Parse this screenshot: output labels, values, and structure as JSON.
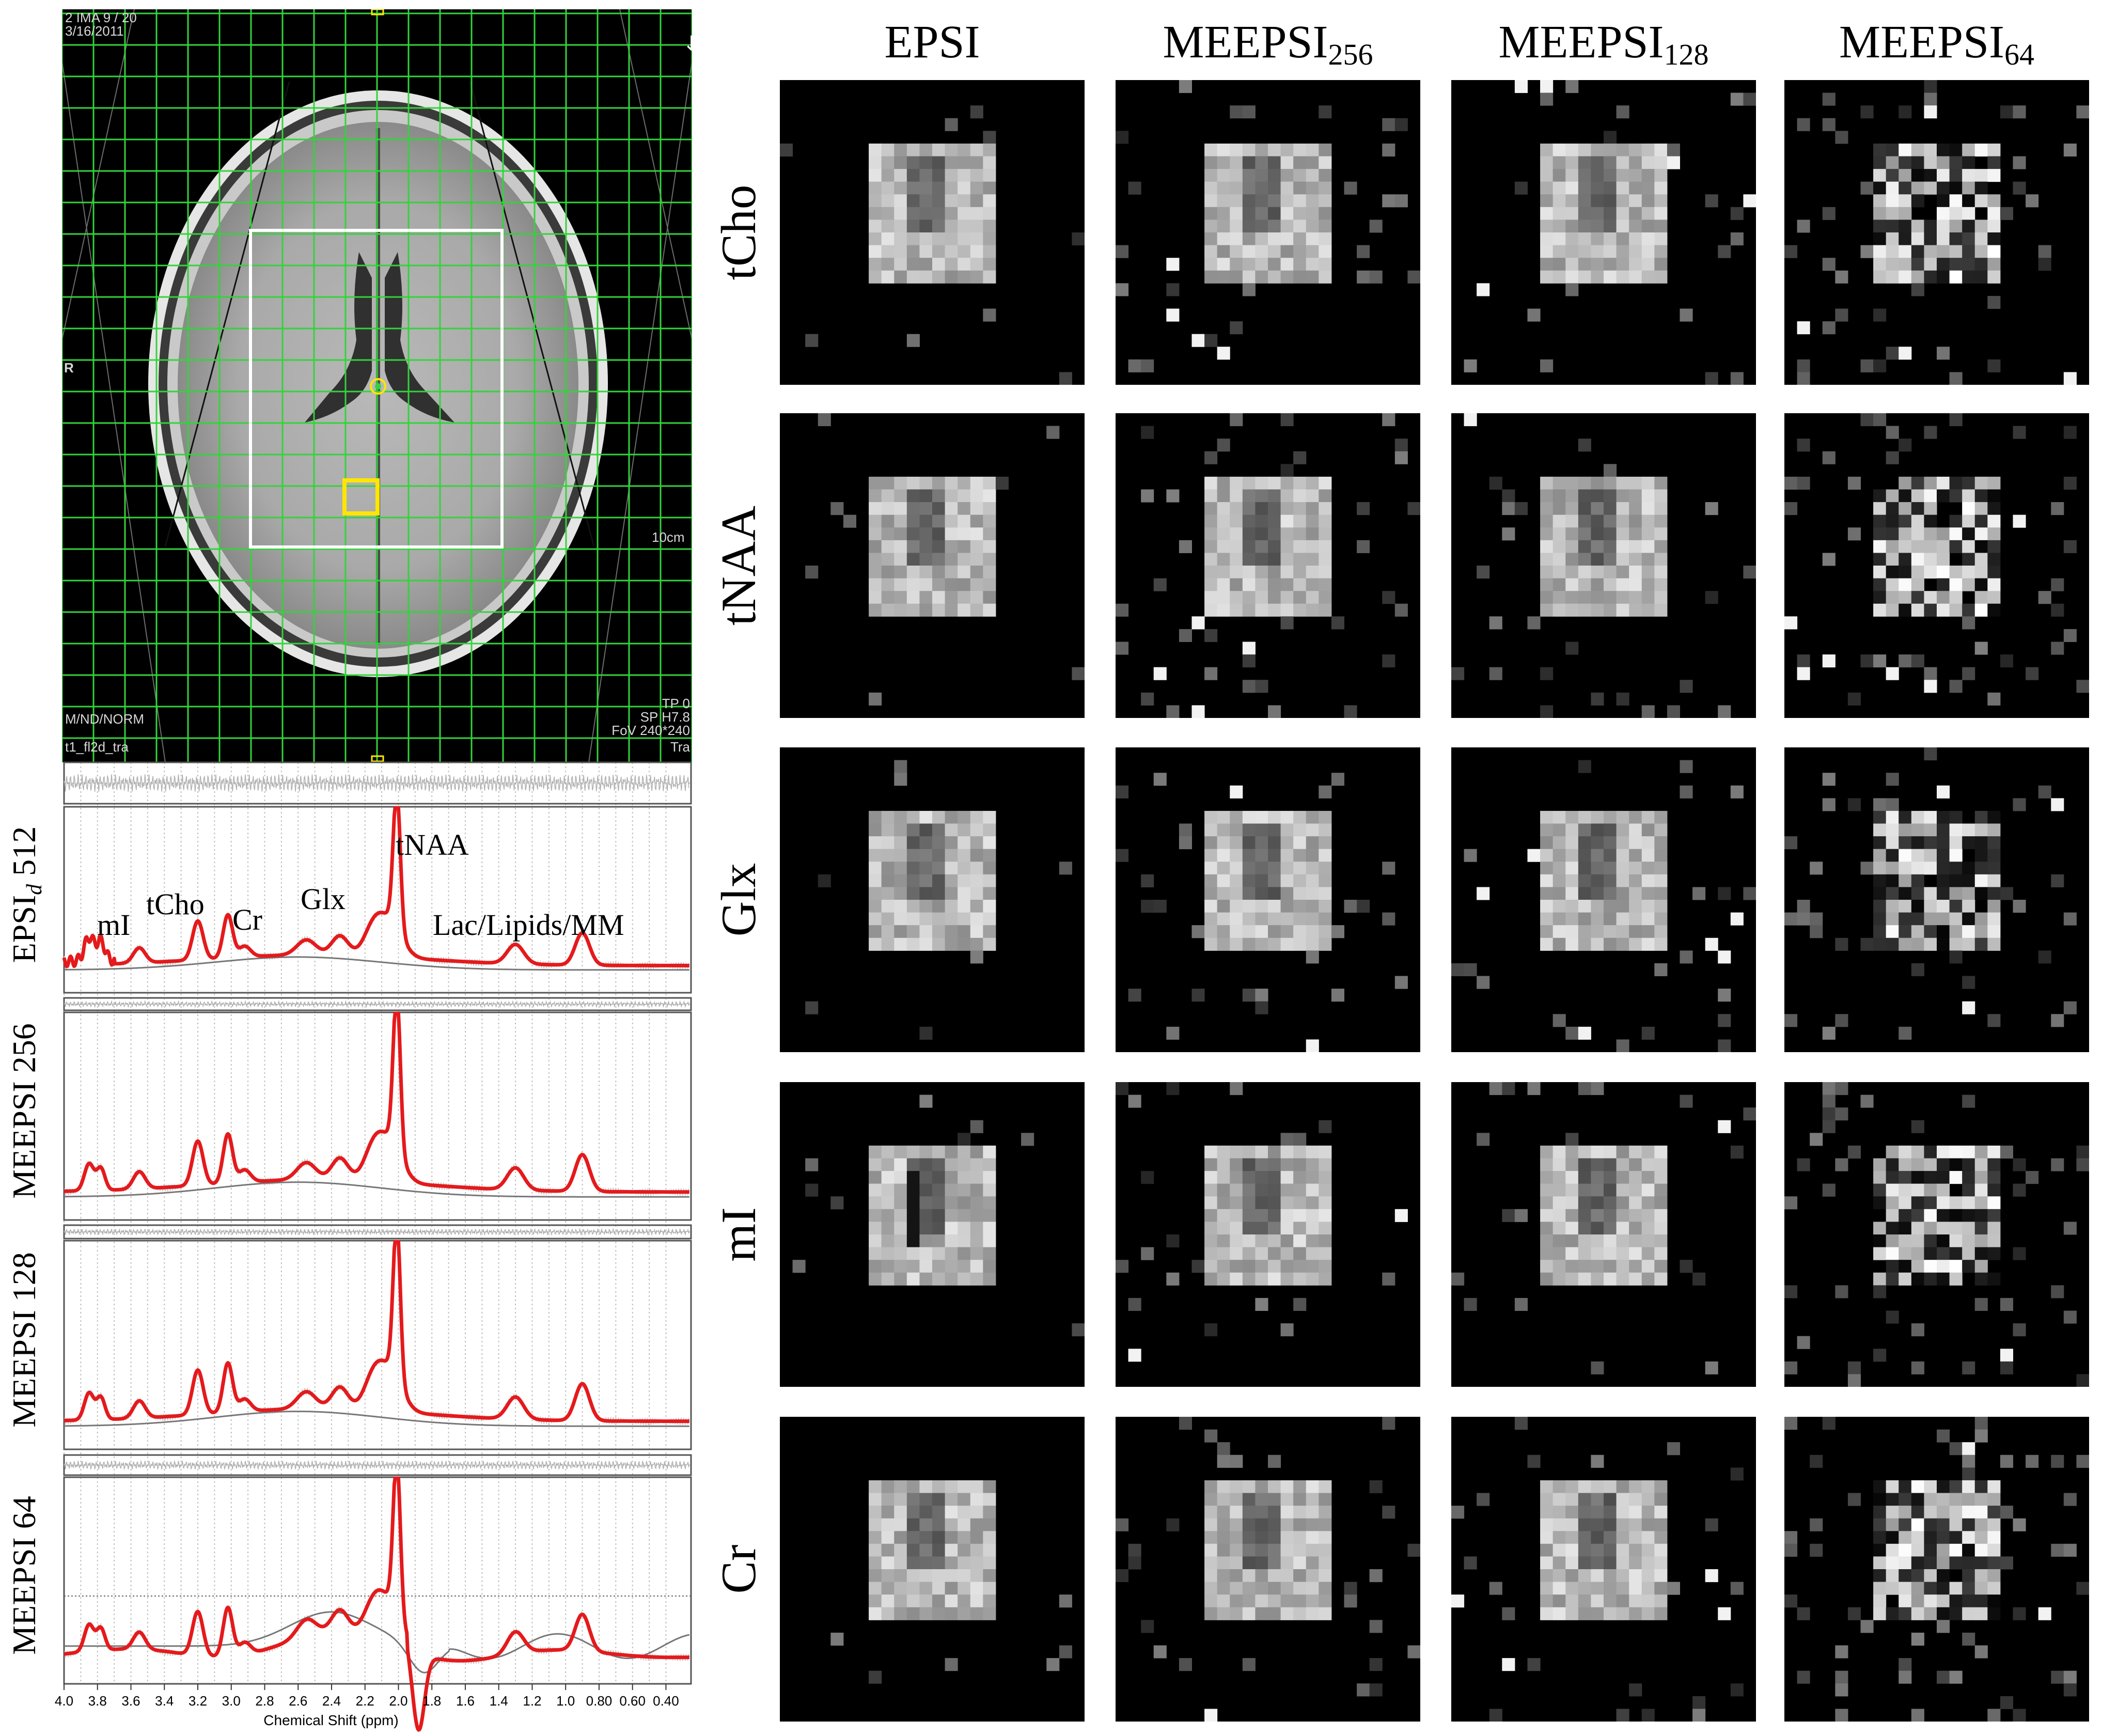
{
  "mri": {
    "top_left_line1": "2 IMA 9 / 20",
    "top_left_line2": "3/16/2011",
    "left_marker": "R",
    "scale_label": "10cm",
    "bottom_left_line1": "M/ND/NORM",
    "bottom_left_line2": "t1_fl2d_tra",
    "bottom_right_line1": "TP 0",
    "bottom_right_line2": "SP H7.8",
    "bottom_right_line3": "FoV 240*240",
    "bottom_right_line4": "Tra"
  },
  "spectra": {
    "x_axis_label": "Chemical Shift (ppm)",
    "x_ticks": [
      "4.0",
      "3.8",
      "3.6",
      "3.4",
      "3.2",
      "3.0",
      "2.8",
      "2.6",
      "2.4",
      "2.2",
      "2.0",
      "1.8",
      "1.6",
      "1.4",
      "1.2",
      "1.0",
      "0.80",
      "0.60",
      "0.40"
    ],
    "panels": [
      {
        "label_main": "EPSI",
        "label_sub": "d",
        "label_num": " 512"
      },
      {
        "label_main": "MEEPSI",
        "label_sub": "",
        "label_num": " 256"
      },
      {
        "label_main": "MEEPSI",
        "label_sub": "",
        "label_num": " 128"
      },
      {
        "label_main": "MEEPSI",
        "label_sub": "",
        "label_num": " 64"
      }
    ],
    "peak_labels": {
      "mI": "mI",
      "tCho": "tCho",
      "Cr": "Cr",
      "Glx": "Glx",
      "tNAA": "tNAA",
      "lac": "Lac/Lipids/MM"
    },
    "fit_color": "#e41a1c",
    "baseline_color": "#777777"
  },
  "grid": {
    "columns": [
      {
        "main": "EPSI",
        "sub": ""
      },
      {
        "main": "MEEPSI",
        "sub": "256"
      },
      {
        "main": "MEEPSI",
        "sub": "128"
      },
      {
        "main": "MEEPSI",
        "sub": "64"
      }
    ],
    "rows": [
      "tCho",
      "tNAA",
      "Glx",
      "mI",
      "Cr"
    ]
  }
}
